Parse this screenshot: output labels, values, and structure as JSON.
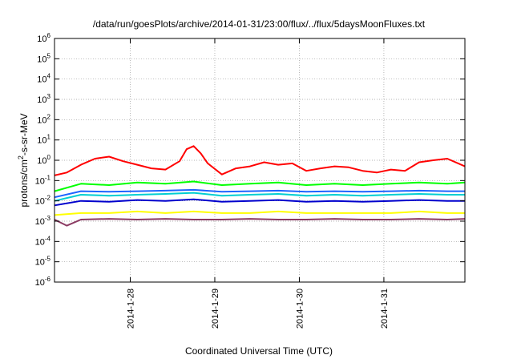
{
  "chart_data": {
    "type": "line",
    "title": "/data/run/goesPlots/archive/2014-01-31/23:00/flux/../flux/5daysMoonFluxes.txt",
    "xlabel": "Coordinated Universal Time (UTC)",
    "ylabel": "protons/cm²-s-sr-MeV",
    "yscale": "log",
    "ylim": [
      1e-06,
      1000000.0
    ],
    "xlim": [
      "2014-01-27T02:30",
      "2014-01-31T23:00"
    ],
    "grid": true,
    "legend": "none",
    "yticks": [
      {
        "value": 1e-06,
        "base": "10",
        "exp": "-6"
      },
      {
        "value": 1e-05,
        "base": "10",
        "exp": "-5"
      },
      {
        "value": 0.0001,
        "base": "10",
        "exp": "-4"
      },
      {
        "value": 0.001,
        "base": "10",
        "exp": "-3"
      },
      {
        "value": 0.01,
        "base": "10",
        "exp": "-2"
      },
      {
        "value": 0.1,
        "base": "10",
        "exp": "-1"
      },
      {
        "value": 1,
        "base": "10",
        "exp": "0"
      },
      {
        "value": 10,
        "base": "10",
        "exp": "1"
      },
      {
        "value": 100,
        "base": "10",
        "exp": "2"
      },
      {
        "value": 1000,
        "base": "10",
        "exp": "3"
      },
      {
        "value": 10000,
        "base": "10",
        "exp": "4"
      },
      {
        "value": 100000,
        "base": "10",
        "exp": "5"
      },
      {
        "value": 1000000,
        "base": "10",
        "exp": "6"
      }
    ],
    "xticks": [
      {
        "value": "2014-01-28T00:00",
        "label": "2014-1-28"
      },
      {
        "value": "2014-01-29T00:00",
        "label": "2014-1-29"
      },
      {
        "value": "2014-01-30T00:00",
        "label": "2014-1-30"
      },
      {
        "value": "2014-01-31T00:00",
        "label": "2014-1-31"
      }
    ],
    "series": [
      {
        "color": "#ff0000",
        "x": [
          "2014-01-27T02:30",
          "2014-01-27T06:00",
          "2014-01-27T10:00",
          "2014-01-27T14:00",
          "2014-01-27T18:00",
          "2014-01-27T22:00",
          "2014-01-28T02:00",
          "2014-01-28T06:00",
          "2014-01-28T10:00",
          "2014-01-28T14:00",
          "2014-01-28T16:00",
          "2014-01-28T18:00",
          "2014-01-28T20:00",
          "2014-01-28T22:00",
          "2014-01-29T02:00",
          "2014-01-29T06:00",
          "2014-01-29T10:00",
          "2014-01-29T14:00",
          "2014-01-29T18:00",
          "2014-01-29T22:00",
          "2014-01-30T02:00",
          "2014-01-30T06:00",
          "2014-01-30T10:00",
          "2014-01-30T14:00",
          "2014-01-30T18:00",
          "2014-01-30T22:00",
          "2014-01-31T02:00",
          "2014-01-31T06:00",
          "2014-01-31T10:00",
          "2014-01-31T14:00",
          "2014-01-31T18:00",
          "2014-01-31T23:00"
        ],
        "y": [
          0.18,
          0.25,
          0.6,
          1.2,
          1.5,
          0.9,
          0.6,
          0.4,
          0.35,
          0.9,
          3.5,
          5.0,
          2.2,
          0.7,
          0.2,
          0.4,
          0.5,
          0.8,
          0.6,
          0.7,
          0.3,
          0.4,
          0.5,
          0.45,
          0.3,
          0.25,
          0.35,
          0.3,
          0.8,
          1.0,
          1.2,
          0.5
        ]
      },
      {
        "color": "#00ff00",
        "x": [
          "2014-01-27T02:30",
          "2014-01-27T10:00",
          "2014-01-27T18:00",
          "2014-01-28T02:00",
          "2014-01-28T10:00",
          "2014-01-28T18:00",
          "2014-01-29T02:00",
          "2014-01-29T10:00",
          "2014-01-29T18:00",
          "2014-01-30T02:00",
          "2014-01-30T10:00",
          "2014-01-30T18:00",
          "2014-01-31T02:00",
          "2014-01-31T10:00",
          "2014-01-31T18:00",
          "2014-01-31T23:00"
        ],
        "y": [
          0.03,
          0.07,
          0.06,
          0.08,
          0.07,
          0.09,
          0.06,
          0.07,
          0.08,
          0.06,
          0.07,
          0.06,
          0.07,
          0.08,
          0.07,
          0.08
        ]
      },
      {
        "color": "#00ced1",
        "x": [
          "2014-01-27T02:30",
          "2014-01-27T10:00",
          "2014-01-27T18:00",
          "2014-01-28T02:00",
          "2014-01-28T10:00",
          "2014-01-28T18:00",
          "2014-01-29T02:00",
          "2014-01-29T10:00",
          "2014-01-29T18:00",
          "2014-01-30T02:00",
          "2014-01-30T10:00",
          "2014-01-30T18:00",
          "2014-01-31T02:00",
          "2014-01-31T10:00",
          "2014-01-31T18:00",
          "2014-01-31T23:00"
        ],
        "y": [
          0.01,
          0.02,
          0.018,
          0.02,
          0.022,
          0.025,
          0.018,
          0.02,
          0.022,
          0.018,
          0.02,
          0.018,
          0.02,
          0.022,
          0.02,
          0.02
        ]
      },
      {
        "color": "#1e64ff",
        "x": [
          "2014-01-27T02:30",
          "2014-01-27T10:00",
          "2014-01-27T18:00",
          "2014-01-28T02:00",
          "2014-01-28T10:00",
          "2014-01-28T18:00",
          "2014-01-29T02:00",
          "2014-01-29T10:00",
          "2014-01-29T18:00",
          "2014-01-30T02:00",
          "2014-01-30T10:00",
          "2014-01-30T18:00",
          "2014-01-31T02:00",
          "2014-01-31T10:00",
          "2014-01-31T18:00",
          "2014-01-31T23:00"
        ],
        "y": [
          0.015,
          0.03,
          0.028,
          0.03,
          0.032,
          0.035,
          0.028,
          0.03,
          0.032,
          0.028,
          0.03,
          0.028,
          0.03,
          0.032,
          0.03,
          0.03
        ]
      },
      {
        "color": "#0000cd",
        "x": [
          "2014-01-27T02:30",
          "2014-01-27T10:00",
          "2014-01-27T18:00",
          "2014-01-28T02:00",
          "2014-01-28T10:00",
          "2014-01-28T18:00",
          "2014-01-29T02:00",
          "2014-01-29T10:00",
          "2014-01-29T18:00",
          "2014-01-30T02:00",
          "2014-01-30T10:00",
          "2014-01-30T18:00",
          "2014-01-31T02:00",
          "2014-01-31T10:00",
          "2014-01-31T18:00",
          "2014-01-31T23:00"
        ],
        "y": [
          0.006,
          0.01,
          0.009,
          0.011,
          0.01,
          0.012,
          0.009,
          0.01,
          0.011,
          0.009,
          0.01,
          0.009,
          0.01,
          0.011,
          0.01,
          0.01
        ]
      },
      {
        "color": "#ffff00",
        "x": [
          "2014-01-27T02:30",
          "2014-01-27T10:00",
          "2014-01-27T18:00",
          "2014-01-28T02:00",
          "2014-01-28T10:00",
          "2014-01-28T18:00",
          "2014-01-29T02:00",
          "2014-01-29T10:00",
          "2014-01-29T18:00",
          "2014-01-30T02:00",
          "2014-01-30T10:00",
          "2014-01-30T18:00",
          "2014-01-31T02:00",
          "2014-01-31T10:00",
          "2014-01-31T18:00",
          "2014-01-31T23:00"
        ],
        "y": [
          0.002,
          0.0025,
          0.0025,
          0.003,
          0.0025,
          0.003,
          0.0025,
          0.0025,
          0.003,
          0.0025,
          0.0025,
          0.0025,
          0.0025,
          0.003,
          0.0025,
          0.0025
        ]
      },
      {
        "color": "#8b3a62",
        "x": [
          "2014-01-27T02:30",
          "2014-01-27T06:00",
          "2014-01-27T10:00",
          "2014-01-27T18:00",
          "2014-01-28T02:00",
          "2014-01-28T10:00",
          "2014-01-28T18:00",
          "2014-01-29T02:00",
          "2014-01-29T10:00",
          "2014-01-29T18:00",
          "2014-01-30T02:00",
          "2014-01-30T10:00",
          "2014-01-30T18:00",
          "2014-01-31T02:00",
          "2014-01-31T10:00",
          "2014-01-31T18:00",
          "2014-01-31T23:00"
        ],
        "y": [
          0.0012,
          0.0006,
          0.0012,
          0.0013,
          0.0012,
          0.0013,
          0.0012,
          0.0012,
          0.0013,
          0.0012,
          0.0012,
          0.0013,
          0.0012,
          0.0012,
          0.0013,
          0.0012,
          0.0013
        ]
      }
    ]
  }
}
